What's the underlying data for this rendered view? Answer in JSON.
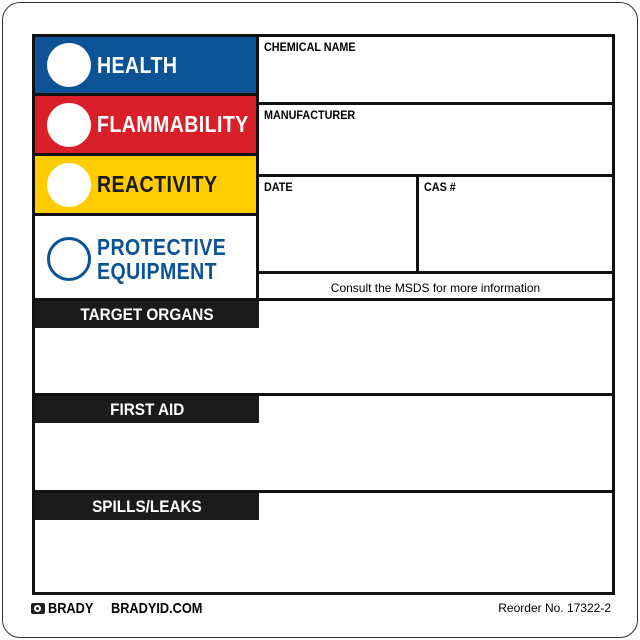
{
  "hazards": [
    {
      "label": "HEALTH",
      "color": "#0b5394"
    },
    {
      "label": "FLAMMABILITY",
      "color": "#d9202a"
    },
    {
      "label": "REACTIVITY",
      "color": "#ffcc00"
    },
    {
      "label_line1": "PROTECTIVE",
      "label_line2": "EQUIPMENT",
      "color": "#0b5394"
    }
  ],
  "fields": {
    "chemical_name": "CHEMICAL NAME",
    "manufacturer": "MANUFACTURER",
    "date": "DATE",
    "cas": "CAS #"
  },
  "consult_note": "Consult the MSDS for more information",
  "sections": {
    "target_organs": "TARGET ORGANS",
    "first_aid": "FIRST AID",
    "spills_leaks": "SPILLS/LEAKS"
  },
  "footer": {
    "brand": "BRADY",
    "website": "BRADYID.COM",
    "reorder": "Reorder No. 17322-2"
  }
}
